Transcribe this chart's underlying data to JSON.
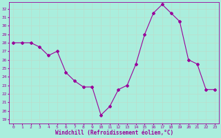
{
  "x": [
    0,
    1,
    2,
    3,
    4,
    5,
    6,
    7,
    8,
    9,
    10,
    11,
    12,
    13,
    14,
    15,
    16,
    17,
    18,
    19,
    20,
    21,
    22,
    23
  ],
  "y": [
    28.0,
    28.0,
    28.0,
    27.5,
    26.5,
    27.0,
    24.5,
    23.5,
    22.8,
    22.8,
    19.5,
    20.5,
    22.5,
    23.0,
    25.5,
    29.0,
    31.5,
    32.5,
    31.5,
    30.5,
    26.0,
    25.5,
    22.5,
    22.5
  ],
  "line_color": "#990099",
  "marker": "D",
  "marker_size": 2,
  "bg_color": "#aaeedd",
  "grid_color": "#bbddcc",
  "xlabel": "Windchill (Refroidissement éolien,°C)",
  "ylabel_ticks": [
    19,
    20,
    21,
    22,
    23,
    24,
    25,
    26,
    27,
    28,
    29,
    30,
    31,
    32
  ],
  "ylim": [
    18.5,
    32.8
  ],
  "xlim": [
    -0.5,
    23.5
  ],
  "tick_color": "#990099",
  "label_color": "#990099",
  "tick_fontsize": 4.5,
  "label_fontsize": 5.5
}
